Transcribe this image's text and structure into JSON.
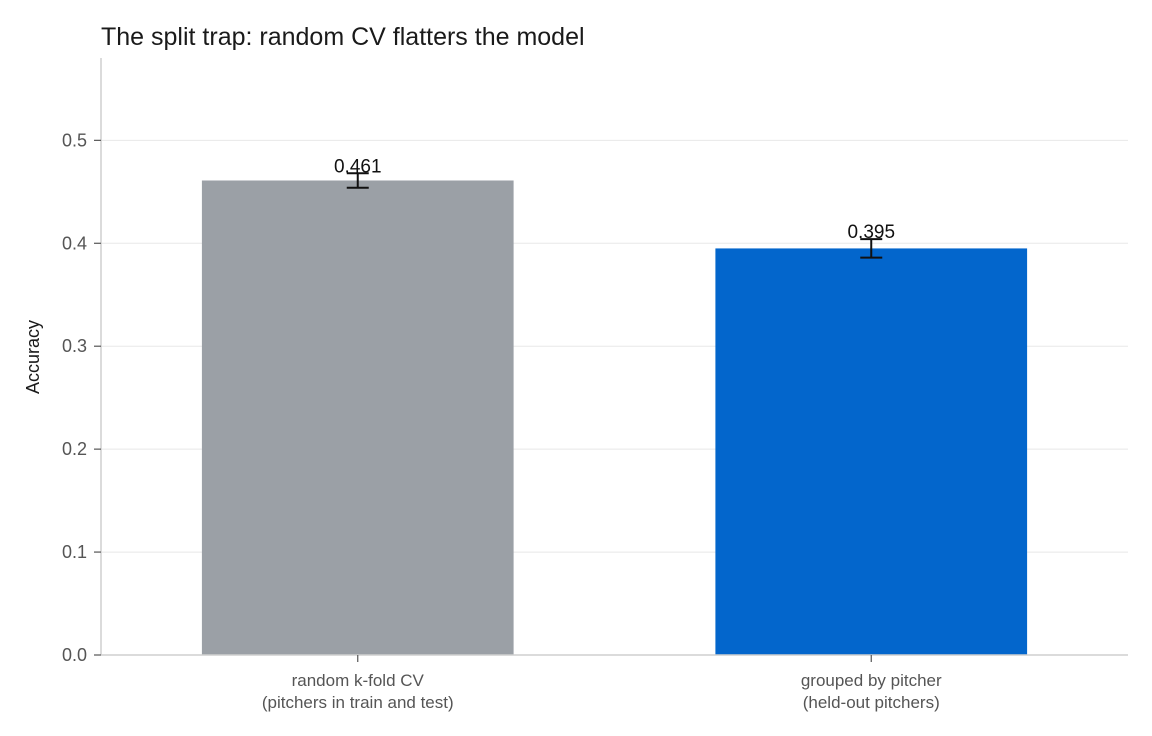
{
  "chart_data": {
    "type": "bar",
    "title": "The split trap: random CV flatters the model",
    "xlabel": "",
    "ylabel": "Accuracy",
    "ylim": [
      0,
      0.58
    ],
    "yticks": [
      "0.0",
      "0.1",
      "0.2",
      "0.3",
      "0.4",
      "0.5"
    ],
    "grid": true,
    "categories": [
      {
        "line1": "random k-fold CV",
        "line2": "(pitchers in train and test)"
      },
      {
        "line1": "grouped by pitcher",
        "line2": "(held-out pitchers)"
      }
    ],
    "values": [
      0.461,
      0.395
    ],
    "errors": [
      0.007,
      0.009
    ],
    "data_labels": [
      "0.461",
      "0.395"
    ],
    "colors": [
      "#9ba0a6",
      "#0366cc"
    ]
  }
}
